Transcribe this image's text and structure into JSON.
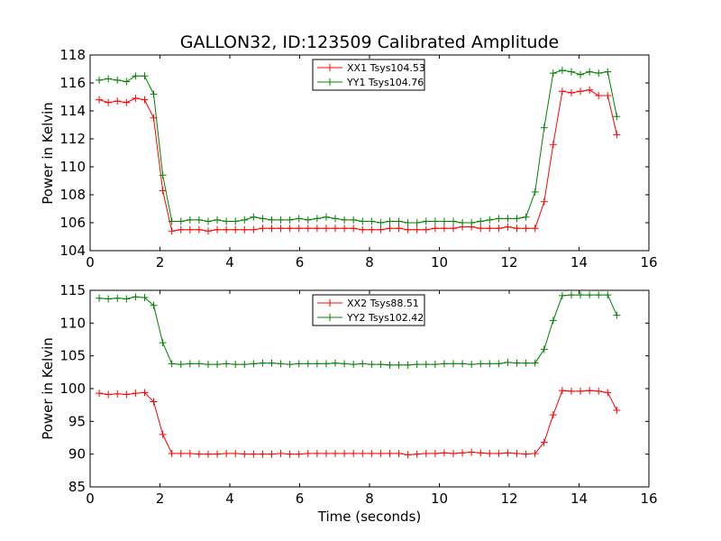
{
  "chart_data": [
    {
      "type": "line",
      "title": "GALLON32, ID:123509 Calibrated Amplitude",
      "xlabel": "",
      "ylabel": "Power in Kelvin",
      "xlim": [
        0,
        16
      ],
      "ylim": [
        104,
        118
      ],
      "xticks": [
        "0",
        "2",
        "4",
        "6",
        "8",
        "10",
        "12",
        "14",
        "16"
      ],
      "yticks": [
        "104",
        "106",
        "108",
        "110",
        "112",
        "114",
        "116",
        "118"
      ],
      "grid": false,
      "legend_position": "top-center",
      "x": [
        0.26,
        0.52,
        0.78,
        1.04,
        1.3,
        1.56,
        1.82,
        2.08,
        2.34,
        2.6,
        2.86,
        3.12,
        3.38,
        3.64,
        3.9,
        4.16,
        4.42,
        4.68,
        4.94,
        5.2,
        5.46,
        5.72,
        5.98,
        6.24,
        6.5,
        6.76,
        7.02,
        7.28,
        7.54,
        7.8,
        8.06,
        8.32,
        8.58,
        8.84,
        9.1,
        9.36,
        9.62,
        9.88,
        10.14,
        10.4,
        10.66,
        10.92,
        11.18,
        11.44,
        11.7,
        11.96,
        12.22,
        12.48,
        12.74,
        13.0,
        13.26,
        13.52,
        13.78,
        14.04,
        14.3,
        14.56,
        14.82,
        15.08
      ],
      "series": [
        {
          "name": "XX1 Tsys104.53",
          "color": "#ff0000",
          "values": [
            114.8,
            114.6,
            114.7,
            114.6,
            114.9,
            114.8,
            113.5,
            108.3,
            105.4,
            105.5,
            105.5,
            105.5,
            105.4,
            105.5,
            105.5,
            105.5,
            105.5,
            105.5,
            105.6,
            105.6,
            105.6,
            105.6,
            105.6,
            105.6,
            105.6,
            105.6,
            105.6,
            105.6,
            105.6,
            105.5,
            105.5,
            105.5,
            105.6,
            105.6,
            105.5,
            105.5,
            105.5,
            105.6,
            105.6,
            105.6,
            105.7,
            105.7,
            105.6,
            105.6,
            105.6,
            105.7,
            105.6,
            105.6,
            105.6,
            107.5,
            111.6,
            115.4,
            115.3,
            115.4,
            115.5,
            115.1,
            115.1,
            112.3
          ]
        },
        {
          "name": "YY1 Tsys104.76",
          "color": "#008000",
          "values": [
            116.2,
            116.3,
            116.2,
            116.1,
            116.5,
            116.5,
            115.2,
            109.4,
            106.1,
            106.1,
            106.2,
            106.2,
            106.1,
            106.2,
            106.1,
            106.1,
            106.2,
            106.4,
            106.3,
            106.2,
            106.2,
            106.2,
            106.3,
            106.2,
            106.3,
            106.4,
            106.3,
            106.2,
            106.2,
            106.1,
            106.1,
            106.0,
            106.1,
            106.1,
            106.0,
            106.0,
            106.1,
            106.1,
            106.1,
            106.1,
            106.0,
            106.0,
            106.1,
            106.2,
            106.3,
            106.3,
            106.3,
            106.4,
            108.2,
            112.8,
            116.7,
            116.9,
            116.8,
            116.6,
            116.8,
            116.7,
            116.8,
            113.6
          ]
        }
      ]
    },
    {
      "type": "line",
      "title": "",
      "xlabel": "Time (seconds)",
      "ylabel": "Power in Kelvin",
      "xlim": [
        0,
        16
      ],
      "ylim": [
        85,
        115
      ],
      "xticks": [
        "0",
        "2",
        "4",
        "6",
        "8",
        "10",
        "12",
        "14",
        "16"
      ],
      "yticks": [
        "85",
        "90",
        "95",
        "100",
        "105",
        "110",
        "115"
      ],
      "grid": false,
      "legend_position": "top-center",
      "x": [
        0.26,
        0.52,
        0.78,
        1.04,
        1.3,
        1.56,
        1.82,
        2.08,
        2.34,
        2.6,
        2.86,
        3.12,
        3.38,
        3.64,
        3.9,
        4.16,
        4.42,
        4.68,
        4.94,
        5.2,
        5.46,
        5.72,
        5.98,
        6.24,
        6.5,
        6.76,
        7.02,
        7.28,
        7.54,
        7.8,
        8.06,
        8.32,
        8.58,
        8.84,
        9.1,
        9.36,
        9.62,
        9.88,
        10.14,
        10.4,
        10.66,
        10.92,
        11.18,
        11.44,
        11.7,
        11.96,
        12.22,
        12.48,
        12.74,
        13.0,
        13.26,
        13.52,
        13.78,
        14.04,
        14.3,
        14.56,
        14.82,
        15.08
      ],
      "series": [
        {
          "name": "XX2 Tsys88.51",
          "color": "#ff0000",
          "values": [
            99.3,
            99.1,
            99.2,
            99.1,
            99.3,
            99.4,
            98.0,
            93.0,
            90.1,
            90.1,
            90.1,
            90.0,
            90.0,
            90.0,
            90.1,
            90.1,
            90.0,
            90.0,
            90.0,
            90.0,
            90.1,
            90.0,
            90.0,
            90.1,
            90.1,
            90.1,
            90.1,
            90.1,
            90.1,
            90.1,
            90.1,
            90.1,
            90.1,
            90.1,
            89.9,
            90.0,
            90.1,
            90.1,
            90.2,
            90.1,
            90.2,
            90.3,
            90.2,
            90.1,
            90.1,
            90.2,
            90.1,
            90.0,
            90.1,
            91.8,
            96.0,
            99.7,
            99.6,
            99.6,
            99.7,
            99.6,
            99.4,
            96.7
          ]
        },
        {
          "name": "YY2 Tsys102.42",
          "color": "#008000",
          "values": [
            113.8,
            113.7,
            113.8,
            113.7,
            114.0,
            113.9,
            112.7,
            107.0,
            103.8,
            103.7,
            103.8,
            103.8,
            103.7,
            103.7,
            103.8,
            103.7,
            103.7,
            103.8,
            103.9,
            103.9,
            103.8,
            103.7,
            103.8,
            103.8,
            103.8,
            103.8,
            103.9,
            103.8,
            103.7,
            103.8,
            103.7,
            103.7,
            103.6,
            103.6,
            103.6,
            103.7,
            103.7,
            103.7,
            103.8,
            103.8,
            103.8,
            103.7,
            103.8,
            103.8,
            103.8,
            104.0,
            103.9,
            103.9,
            103.9,
            106.0,
            110.4,
            114.2,
            114.3,
            114.3,
            114.3,
            114.3,
            114.3,
            111.2
          ]
        }
      ]
    }
  ]
}
